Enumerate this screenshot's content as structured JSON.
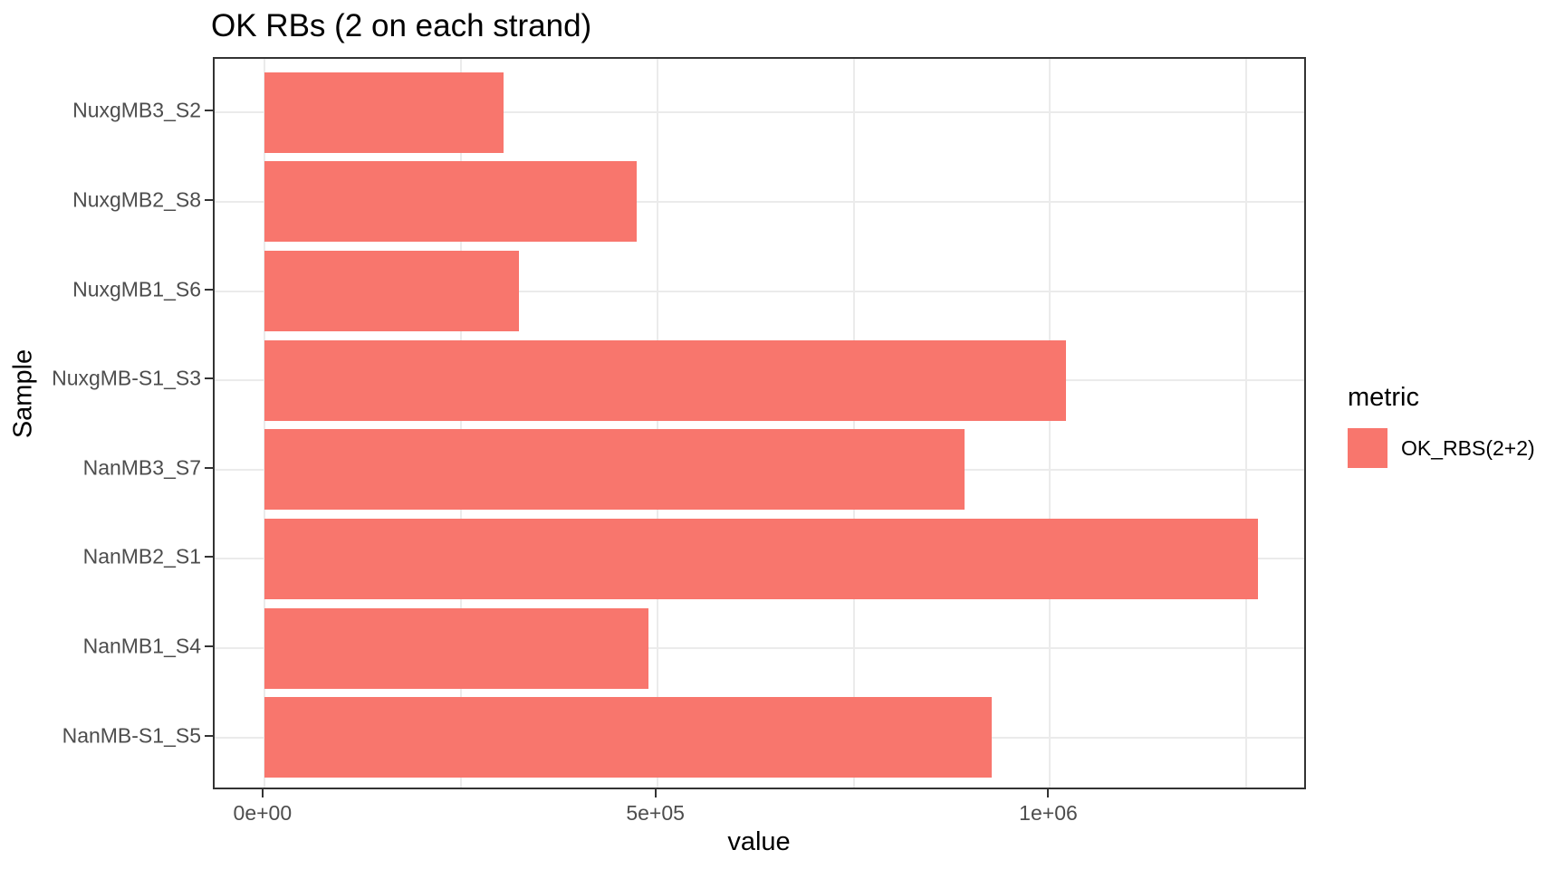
{
  "chart_data": {
    "type": "bar",
    "orientation": "horizontal",
    "title": "OK RBs (2 on each strand)",
    "xlabel": "value",
    "ylabel": "Sample",
    "legend_title": "metric",
    "legend_position": "right",
    "series": [
      {
        "name": "OK_RBS(2+2)",
        "color": "#F8766D"
      }
    ],
    "categories": [
      "NuxgMB3_S2",
      "NuxgMB2_S8",
      "NuxgMB1_S6",
      "NuxgMB-S1_S3",
      "NanMB3_S7",
      "NanMB2_S1",
      "NanMB1_S4",
      "NanMB-S1_S5"
    ],
    "values": [
      305000,
      474000,
      324000,
      1020000,
      891000,
      1264000,
      489000,
      926000
    ],
    "x_ticks": {
      "values": [
        0,
        500000,
        1000000
      ],
      "labels": [
        "0e+00",
        "5e+05",
        "1e+06"
      ]
    },
    "x_minor_ticks": [
      250000,
      750000,
      1250000
    ],
    "xlim": [
      -63200,
      1327900
    ],
    "grid": "vertical major+minor, horizontal major per category",
    "colors": {
      "bar": "#F8766D",
      "panel_border": "#333333",
      "gridline": "#EBEBEB",
      "tick_text": "#4D4D4D",
      "text": "#000000",
      "background": "#FFFFFF"
    }
  }
}
